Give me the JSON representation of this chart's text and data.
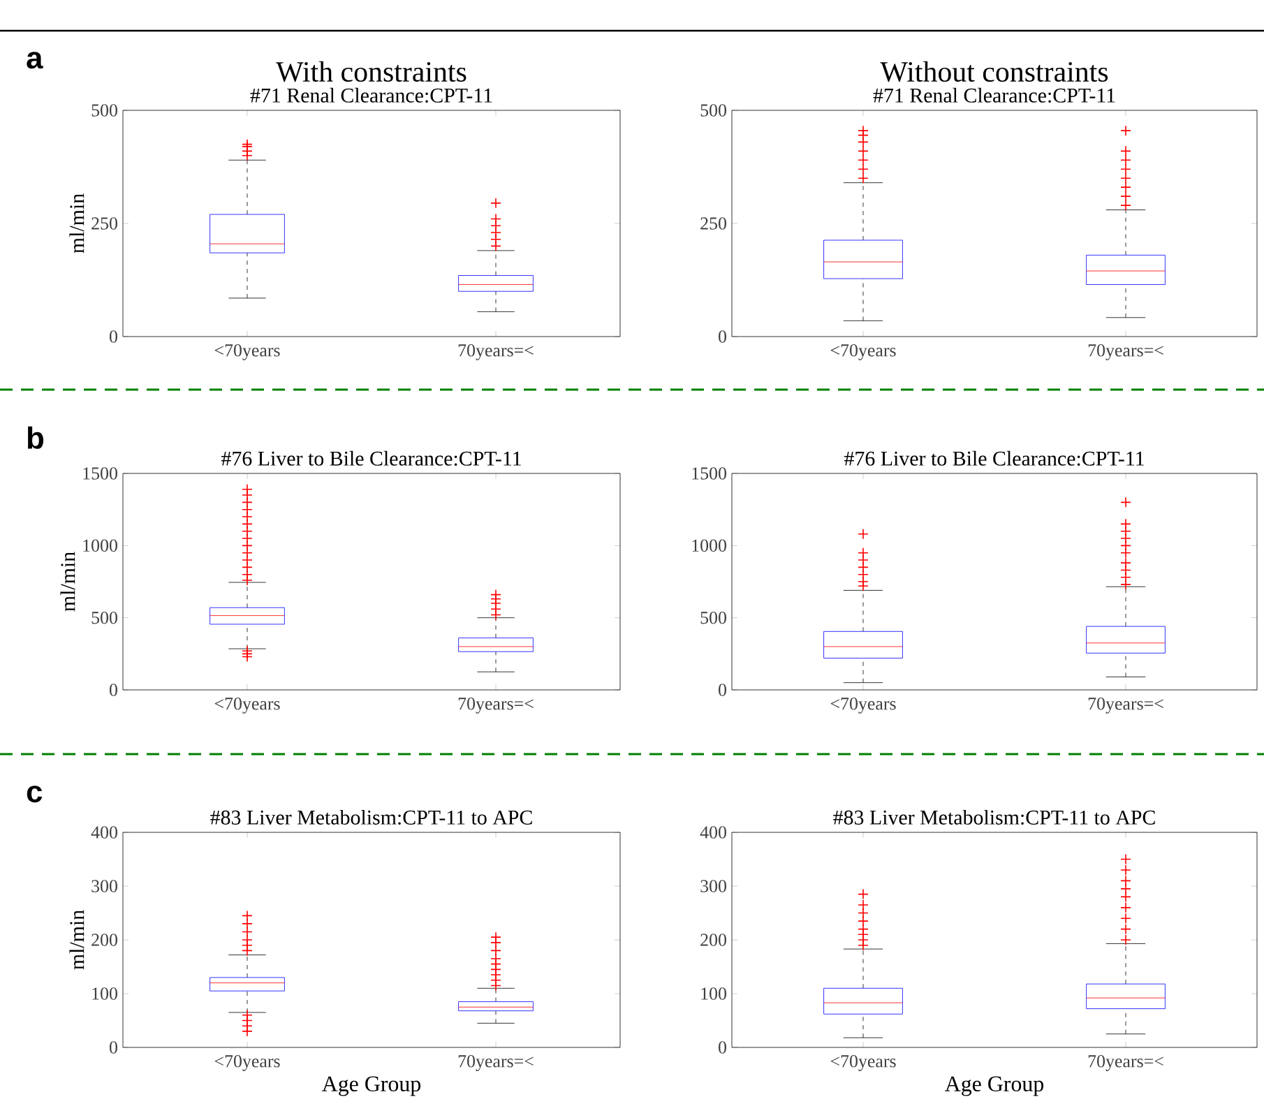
{
  "chart_data": [
    {
      "type": "box",
      "title": "With constraints",
      "subtitle": "#71 Renal Clearance:CPT-11",
      "ylabel": "ml/min",
      "categories": [
        "<70years",
        "70years=<"
      ],
      "ylim": [
        0,
        500
      ],
      "yticks": [
        0,
        250,
        500
      ],
      "color": "#0000ff",
      "annotations": [
        "a"
      ],
      "boxes": [
        {
          "low": 85,
          "q1": 185,
          "median": 205,
          "q3": 270,
          "high": 390,
          "outliers": [
            400,
            410,
            420,
            425
          ]
        },
        {
          "low": 55,
          "q1": 100,
          "median": 115,
          "q3": 135,
          "high": 190,
          "outliers": [
            200,
            215,
            230,
            245,
            260,
            295
          ]
        }
      ]
    },
    {
      "type": "box",
      "title": "Without constraints",
      "subtitle": "#71 Renal Clearance:CPT-11",
      "categories": [
        "<70years",
        "70years=<"
      ],
      "ylim": [
        0,
        500
      ],
      "yticks": [
        0,
        250,
        500
      ],
      "color": "#0000ff",
      "boxes": [
        {
          "low": 35,
          "q1": 128,
          "median": 165,
          "q3": 213,
          "high": 340,
          "outliers": [
            350,
            370,
            390,
            410,
            430,
            445,
            455
          ]
        },
        {
          "low": 42,
          "q1": 115,
          "median": 145,
          "q3": 180,
          "high": 280,
          "outliers": [
            290,
            310,
            330,
            350,
            370,
            390,
            410,
            455
          ]
        }
      ]
    },
    {
      "type": "box",
      "title": "#76 Liver to Bile Clearance:CPT-11",
      "ylabel": "ml/min",
      "categories": [
        "<70years",
        "70years=<"
      ],
      "ylim": [
        0,
        1500
      ],
      "yticks": [
        0,
        500,
        1000,
        1500
      ],
      "color": "#0000ff",
      "annotations": [
        "b"
      ],
      "boxes": [
        {
          "low": 285,
          "q1": 455,
          "median": 515,
          "q3": 570,
          "high": 745,
          "outliers": [
            230,
            250,
            270,
            760,
            800,
            850,
            900,
            950,
            1000,
            1050,
            1100,
            1150,
            1200,
            1250,
            1300,
            1350,
            1390
          ]
        },
        {
          "low": 125,
          "q1": 265,
          "median": 300,
          "q3": 360,
          "high": 500,
          "outliers": [
            520,
            560,
            600,
            630,
            660
          ]
        }
      ]
    },
    {
      "type": "box",
      "title": "#76 Liver to Bile Clearance:CPT-11",
      "categories": [
        "<70years",
        "70years=<"
      ],
      "ylim": [
        0,
        1500
      ],
      "yticks": [
        0,
        500,
        1000,
        1500
      ],
      "color": "#0000ff",
      "boxes": [
        {
          "low": 50,
          "q1": 220,
          "median": 300,
          "q3": 405,
          "high": 690,
          "outliers": [
            720,
            750,
            800,
            850,
            900,
            950,
            1080
          ]
        },
        {
          "low": 90,
          "q1": 255,
          "median": 325,
          "q3": 440,
          "high": 715,
          "outliers": [
            730,
            780,
            830,
            880,
            950,
            1000,
            1050,
            1100,
            1150,
            1300
          ]
        }
      ]
    },
    {
      "type": "box",
      "title": "#83 Liver Metabolism:CPT-11 to APC",
      "xlabel": "Age Group",
      "ylabel": "ml/min",
      "categories": [
        "<70years",
        "70years=<"
      ],
      "ylim": [
        0,
        400
      ],
      "yticks": [
        0,
        100,
        200,
        300,
        400
      ],
      "color": "#0000ff",
      "annotations": [
        "c"
      ],
      "boxes": [
        {
          "low": 65,
          "q1": 105,
          "median": 120,
          "q3": 130,
          "high": 172,
          "outliers": [
            30,
            40,
            50,
            60,
            180,
            190,
            200,
            215,
            230,
            245
          ]
        },
        {
          "low": 45,
          "q1": 68,
          "median": 75,
          "q3": 85,
          "high": 110,
          "outliers": [
            115,
            125,
            135,
            145,
            155,
            165,
            180,
            195,
            205
          ]
        }
      ]
    },
    {
      "type": "box",
      "title": "#83 Liver Metabolism:CPT-11 to APC",
      "xlabel": "Age Group",
      "categories": [
        "<70years",
        "70years=<"
      ],
      "ylim": [
        0,
        400
      ],
      "yticks": [
        0,
        100,
        200,
        300,
        400
      ],
      "color": "#0000ff",
      "boxes": [
        {
          "low": 18,
          "q1": 62,
          "median": 83,
          "q3": 110,
          "high": 183,
          "outliers": [
            190,
            200,
            210,
            220,
            235,
            250,
            265,
            285
          ]
        },
        {
          "low": 25,
          "q1": 72,
          "median": 92,
          "q3": 118,
          "high": 193,
          "outliers": [
            200,
            220,
            240,
            260,
            280,
            295,
            310,
            330,
            350
          ]
        }
      ]
    }
  ]
}
